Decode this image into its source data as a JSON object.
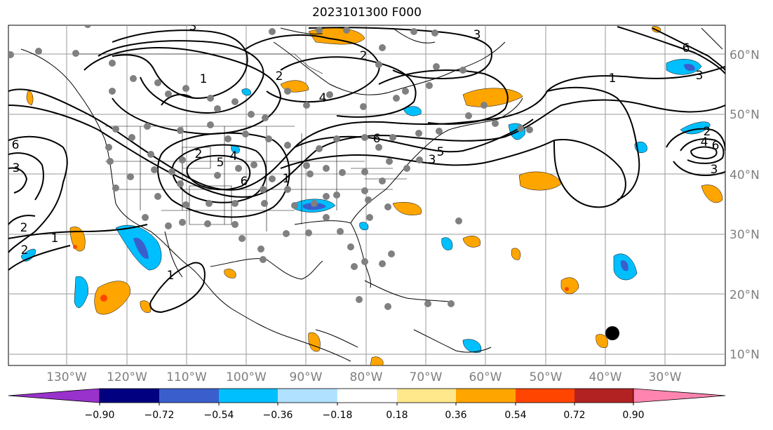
{
  "title": "2023101300 F000",
  "lon_labels": [
    "130°W",
    "120°W",
    "110°W",
    "100°W",
    "90°W",
    "80°W",
    "70°W",
    "60°W",
    "50°W",
    "40°W",
    "30°W"
  ],
  "lat_labels": [
    "60°N",
    "50°N",
    "40°N",
    "30°N",
    "20°N",
    "10°N"
  ],
  "colorbar": {
    "ticks": [
      "−0.90",
      "−0.72",
      "−0.54",
      "−0.36",
      "−0.18",
      "0.18",
      "0.36",
      "0.54",
      "0.72",
      "0.90"
    ],
    "colors": [
      "#9932cc",
      "#000080",
      "#3a5fcd",
      "#00bfff",
      "#b0e2ff",
      "#ffffff",
      "#ffe88c",
      "#ffa500",
      "#ff4500",
      "#b22222",
      "#ff85b0"
    ]
  },
  "contour_labels": [
    "1",
    "2",
    "3",
    "4",
    "5",
    "6"
  ],
  "colors": {
    "positive": "#ffa500",
    "negative": "#00bfff",
    "contour": "#000000",
    "stations": "#808080"
  }
}
